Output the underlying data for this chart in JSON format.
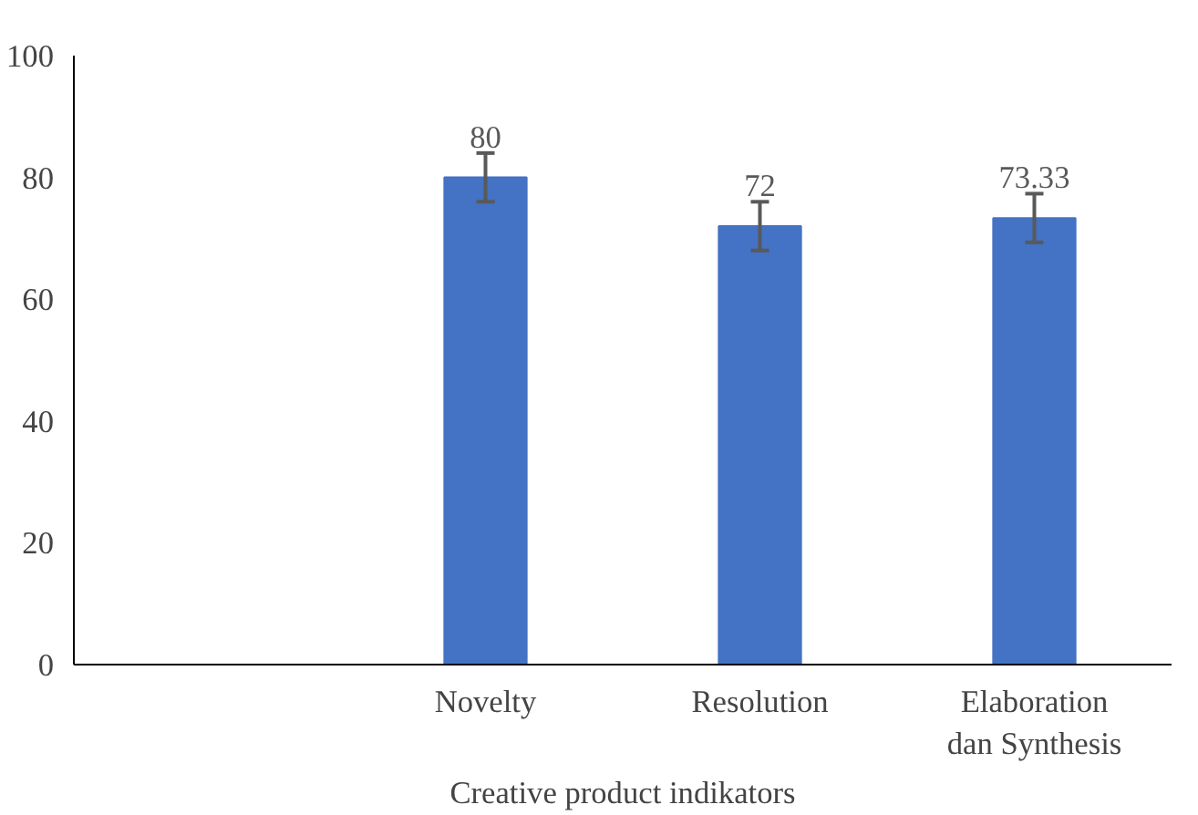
{
  "chart_data": {
    "type": "bar",
    "xlabel": "Creative product indikators",
    "categories": [
      null,
      "Novelty",
      "Resolution",
      "Elaboration dan Synthesis"
    ],
    "values": [
      null,
      80,
      72,
      73.33
    ],
    "color": "#4472c4",
    "errors": [
      null,
      4,
      4,
      4
    ],
    "data_labels": true,
    "ylim": [
      0,
      100
    ],
    "yticks": [
      0,
      20,
      40,
      60,
      80,
      100
    ],
    "grid": false
  }
}
